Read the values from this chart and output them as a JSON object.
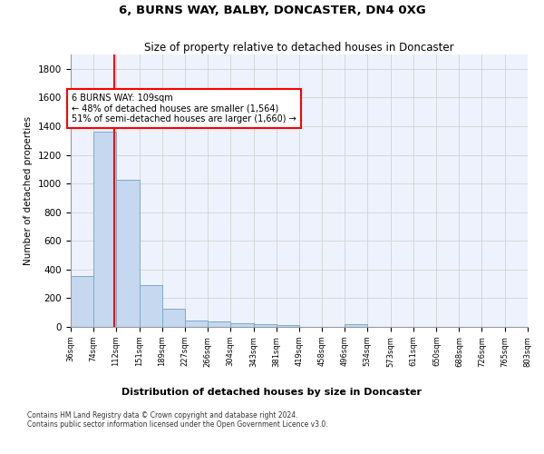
{
  "title": "6, BURNS WAY, BALBY, DONCASTER, DN4 0XG",
  "subtitle": "Size of property relative to detached houses in Doncaster",
  "xlabel": "Distribution of detached houses by size in Doncaster",
  "ylabel": "Number of detached properties",
  "bar_color": "#c5d8f0",
  "bar_edge_color": "#7aabcc",
  "grid_color": "#cccccc",
  "background_color": "#eef2fc",
  "vline_x": 109,
  "vline_color": "red",
  "annotation_text": "6 BURNS WAY: 109sqm\n← 48% of detached houses are smaller (1,564)\n51% of semi-detached houses are larger (1,660) →",
  "annotation_box_color": "red",
  "bin_edges": [
    36,
    74,
    112,
    151,
    189,
    227,
    266,
    304,
    343,
    381,
    419,
    458,
    496,
    534,
    573,
    611,
    650,
    688,
    726,
    765,
    803
  ],
  "bin_labels": [
    "36sqm",
    "74sqm",
    "112sqm",
    "151sqm",
    "189sqm",
    "227sqm",
    "266sqm",
    "304sqm",
    "343sqm",
    "381sqm",
    "419sqm",
    "458sqm",
    "496sqm",
    "534sqm",
    "573sqm",
    "611sqm",
    "650sqm",
    "688sqm",
    "726sqm",
    "765sqm",
    "803sqm"
  ],
  "bar_heights": [
    355,
    1360,
    1025,
    290,
    125,
    42,
    35,
    25,
    20,
    15,
    0,
    0,
    20,
    0,
    0,
    0,
    0,
    0,
    0,
    0
  ],
  "ylim": [
    0,
    1900
  ],
  "yticks": [
    0,
    200,
    400,
    600,
    800,
    1000,
    1200,
    1400,
    1600,
    1800
  ],
  "footer_text": "Contains HM Land Registry data © Crown copyright and database right 2024.\nContains public sector information licensed under the Open Government Licence v3.0.",
  "fig_width": 6.0,
  "fig_height": 5.0,
  "dpi": 100
}
